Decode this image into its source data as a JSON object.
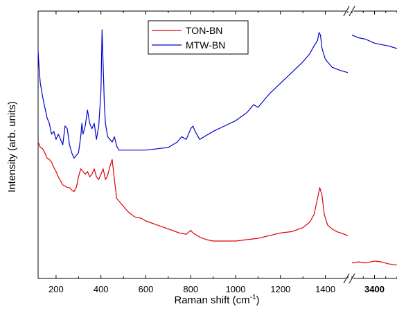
{
  "chart_data": {
    "type": "line",
    "title": "",
    "xlabel_main": "Raman shift (cm",
    "xlabel_sup": "-1",
    "xlabel_close": ")",
    "ylabel": "Intensity (arb. units)",
    "x_axis_broken": true,
    "x_segments": [
      {
        "xlim": [
          120,
          1500
        ],
        "ticks": [
          200,
          400,
          600,
          800,
          1000,
          1200,
          1400
        ]
      },
      {
        "xlim": [
          3300,
          3500
        ],
        "ticks": [
          3400
        ]
      }
    ],
    "y_ticks_labeled": false,
    "ylim": [
      0,
      100
    ],
    "legend_position": "top-center",
    "series": [
      {
        "name": "TON-BN",
        "color": "#dd0000",
        "segments": [
          [
            [
              120,
              51
            ],
            [
              130,
              49
            ],
            [
              140,
              48.5
            ],
            [
              150,
              47
            ],
            [
              160,
              45
            ],
            [
              170,
              44.5
            ],
            [
              180,
              43.5
            ],
            [
              190,
              41.5
            ],
            [
              200,
              40
            ],
            [
              210,
              38
            ],
            [
              220,
              36.5
            ],
            [
              230,
              35
            ],
            [
              240,
              34.5
            ],
            [
              250,
              34
            ],
            [
              260,
              34
            ],
            [
              270,
              33
            ],
            [
              280,
              32.5
            ],
            [
              290,
              34
            ],
            [
              300,
              38
            ],
            [
              310,
              41
            ],
            [
              320,
              40
            ],
            [
              330,
              39
            ],
            [
              340,
              40
            ],
            [
              350,
              38
            ],
            [
              360,
              39
            ],
            [
              370,
              41
            ],
            [
              380,
              38
            ],
            [
              390,
              37
            ],
            [
              400,
              39
            ],
            [
              410,
              41
            ],
            [
              420,
              37
            ],
            [
              430,
              38.5
            ],
            [
              440,
              42
            ],
            [
              450,
              44.5
            ],
            [
              460,
              37
            ],
            [
              470,
              30
            ],
            [
              480,
              29
            ],
            [
              500,
              27
            ],
            [
              520,
              25
            ],
            [
              550,
              23
            ],
            [
              580,
              22.5
            ],
            [
              600,
              21.5
            ],
            [
              650,
              20
            ],
            [
              700,
              18.5
            ],
            [
              750,
              17
            ],
            [
              780,
              16.5
            ],
            [
              800,
              18
            ],
            [
              810,
              17
            ],
            [
              840,
              15.5
            ],
            [
              870,
              14.5
            ],
            [
              900,
              14
            ],
            [
              950,
              14
            ],
            [
              1000,
              14
            ],
            [
              1050,
              14.5
            ],
            [
              1100,
              15
            ],
            [
              1150,
              16
            ],
            [
              1200,
              17
            ],
            [
              1250,
              17.5
            ],
            [
              1300,
              19
            ],
            [
              1330,
              21
            ],
            [
              1350,
              24
            ],
            [
              1365,
              30
            ],
            [
              1375,
              34
            ],
            [
              1385,
              31
            ],
            [
              1395,
              24
            ],
            [
              1410,
              20
            ],
            [
              1430,
              18.5
            ],
            [
              1450,
              17.5
            ],
            [
              1470,
              17
            ],
            [
              1500,
              16
            ]
          ],
          [
            [
              3300,
              5.8
            ],
            [
              3330,
              6.2
            ],
            [
              3360,
              5.8
            ],
            [
              3400,
              6.5
            ],
            [
              3430,
              6.2
            ],
            [
              3460,
              5.5
            ],
            [
              3500,
              5.0
            ]
          ]
        ]
      },
      {
        "name": "MTW-BN",
        "color": "#0000cc",
        "segments": [
          [
            [
              120,
              85
            ],
            [
              125,
              78
            ],
            [
              130,
              73
            ],
            [
              140,
              68
            ],
            [
              150,
              64
            ],
            [
              160,
              60
            ],
            [
              170,
              58
            ],
            [
              180,
              54
            ],
            [
              190,
              55
            ],
            [
              200,
              52
            ],
            [
              210,
              54
            ],
            [
              220,
              52
            ],
            [
              230,
              50
            ],
            [
              240,
              57
            ],
            [
              250,
              56
            ],
            [
              260,
              50
            ],
            [
              270,
              47
            ],
            [
              280,
              45
            ],
            [
              290,
              46
            ],
            [
              300,
              47
            ],
            [
              310,
              53
            ],
            [
              315,
              58
            ],
            [
              320,
              54
            ],
            [
              330,
              57
            ],
            [
              340,
              63
            ],
            [
              350,
              58
            ],
            [
              360,
              56
            ],
            [
              370,
              58
            ],
            [
              380,
              52
            ],
            [
              390,
              57
            ],
            [
              400,
              70
            ],
            [
              405,
              93
            ],
            [
              410,
              80
            ],
            [
              415,
              65
            ],
            [
              420,
              58
            ],
            [
              430,
              53
            ],
            [
              440,
              52
            ],
            [
              450,
              51
            ],
            [
              460,
              53
            ],
            [
              470,
              49.5
            ],
            [
              480,
              48
            ],
            [
              500,
              48
            ],
            [
              550,
              48
            ],
            [
              600,
              48
            ],
            [
              650,
              48.5
            ],
            [
              700,
              49
            ],
            [
              740,
              51
            ],
            [
              760,
              53
            ],
            [
              780,
              52
            ],
            [
              800,
              56
            ],
            [
              810,
              57
            ],
            [
              820,
              55
            ],
            [
              840,
              52
            ],
            [
              860,
              53
            ],
            [
              900,
              55
            ],
            [
              950,
              57
            ],
            [
              1000,
              59
            ],
            [
              1050,
              62
            ],
            [
              1080,
              65
            ],
            [
              1100,
              64
            ],
            [
              1150,
              69
            ],
            [
              1200,
              73
            ],
            [
              1250,
              77
            ],
            [
              1300,
              81
            ],
            [
              1330,
              84
            ],
            [
              1350,
              87
            ],
            [
              1365,
              89
            ],
            [
              1372,
              92
            ],
            [
              1378,
              91
            ],
            [
              1385,
              86
            ],
            [
              1400,
              82
            ],
            [
              1430,
              79
            ],
            [
              1460,
              78
            ],
            [
              1500,
              77
            ]
          ],
          [
            [
              3300,
              91
            ],
            [
              3330,
              90
            ],
            [
              3360,
              89.5
            ],
            [
              3400,
              88
            ],
            [
              3430,
              87.5
            ],
            [
              3460,
              87
            ],
            [
              3500,
              86
            ]
          ]
        ]
      }
    ]
  }
}
